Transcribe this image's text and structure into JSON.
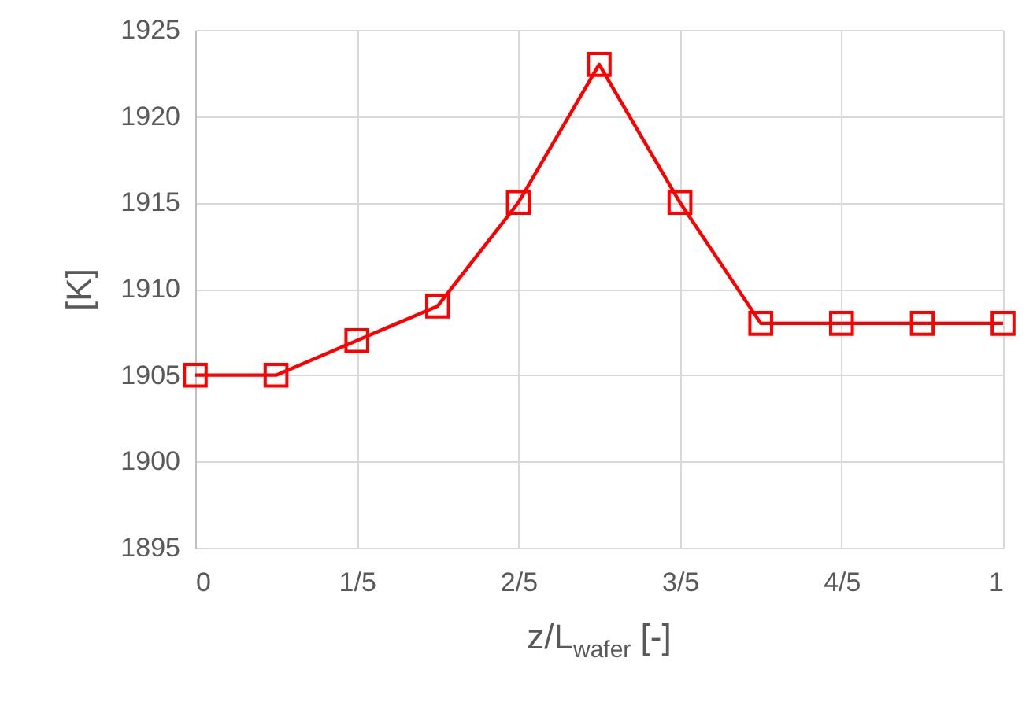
{
  "chart_data": {
    "type": "line",
    "xlabel": "z/L$_{wafer}$ [-]",
    "ylabel": "[K]",
    "x": [
      0,
      0.1,
      0.2,
      0.3,
      0.4,
      0.5,
      0.6,
      0.7,
      0.8,
      0.9,
      1.0
    ],
    "series": [
      {
        "color": "#ff0000",
        "values": [
          1905,
          1905,
          1907,
          1909,
          1915,
          1923,
          1915,
          1908,
          1908,
          1908,
          1908
        ]
      }
    ],
    "xlim": [
      0,
      1
    ],
    "xticks": [
      0,
      {
        "value": 0.2,
        "label": "1/5"
      },
      {
        "value": 0.4,
        "label": "2/5"
      },
      {
        "value": 0.6,
        "label": "3/5"
      },
      {
        "value": 0.8,
        "label": "4/5"
      },
      1
    ],
    "ylim": [
      1895,
      1925
    ],
    "yticks": [
      1895,
      1900,
      1905,
      1910,
      1915,
      1920,
      1925
    ],
    "grid": true,
    "marker": "square",
    "line_style": "solid"
  }
}
